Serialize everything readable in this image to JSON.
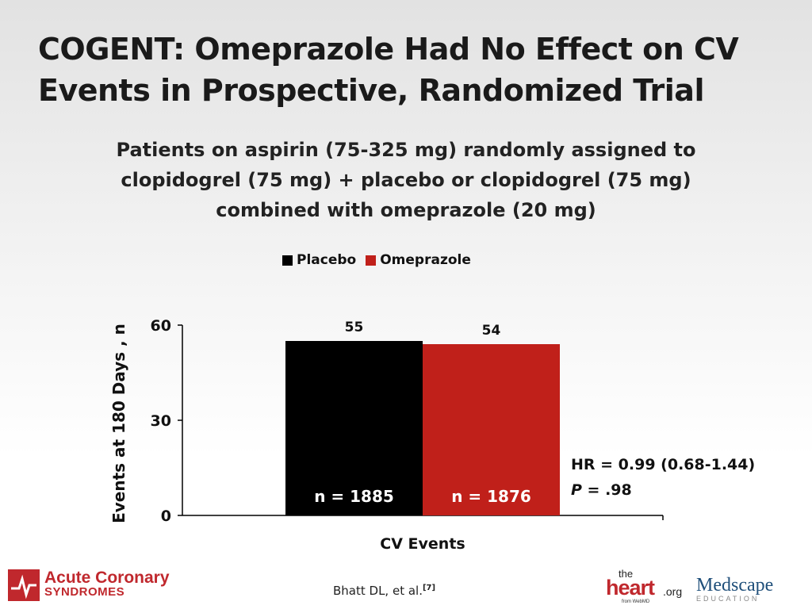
{
  "slide": {
    "title": "COGENT: Omeprazole Had No Effect on CV Events in Prospective, Randomized Trial",
    "subtitle": "Patients on aspirin (75-325 mg) randomly assigned to clopidogrel (75 mg) + placebo or clopidogrel (75 mg) combined with omeprazole (20 mg)",
    "annotation_hr": "HR = 0.99 (0.68-1.44)",
    "annotation_p_label": "P",
    "annotation_p_value": " = .98",
    "citation_text": "Bhatt DL, et al.",
    "citation_ref": "[7]"
  },
  "logos": {
    "acs_line1": "Acute Coronary",
    "acs_line2": "SYNDROMES",
    "heart_the": "the",
    "heart_main": "heart",
    "heart_org": ".org",
    "heart_from": "from WebMD",
    "medscape_main": "Medscape",
    "medscape_sub": "EDUCATION"
  },
  "chart_data": {
    "type": "bar",
    "categories": [
      "CV Events"
    ],
    "series": [
      {
        "name": "Placebo",
        "values": [
          55
        ],
        "color": "#000000",
        "inner_label": "n = 1885"
      },
      {
        "name": "Omeprazole",
        "values": [
          54
        ],
        "color": "#c0201a",
        "inner_label": "n = 1876"
      }
    ],
    "xlabel": "CV Events",
    "ylabel": "Events at 180 Days , n",
    "ylim": [
      0,
      60
    ],
    "yticks": [
      0,
      30,
      60
    ],
    "data_labels": [
      "55",
      "54"
    ],
    "grid": false,
    "legend_position": "top-center"
  }
}
